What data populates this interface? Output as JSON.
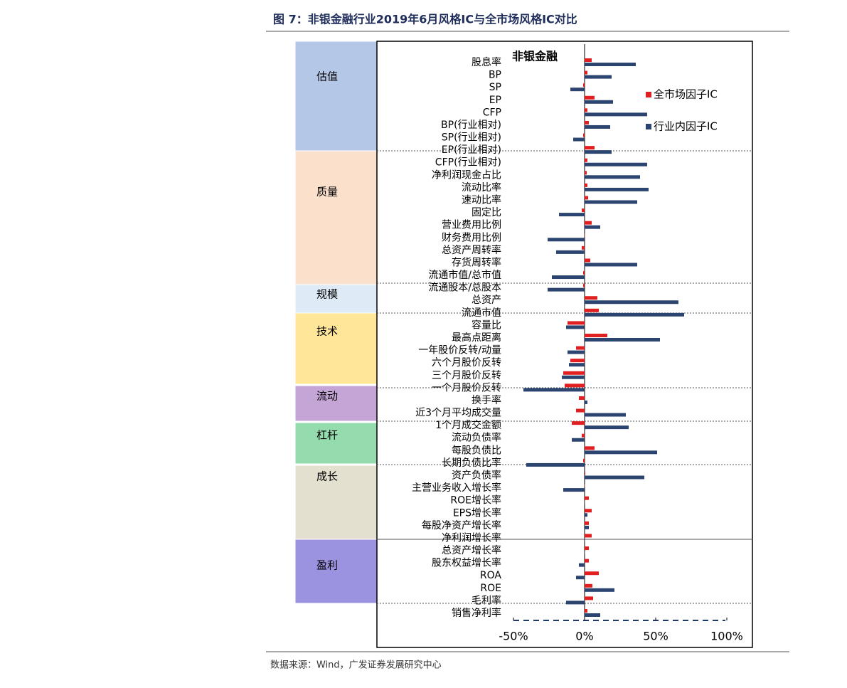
{
  "title": "图 7：非银金融行业2019年6月风格IC与全市场风格IC对比",
  "source": "数据来源：Wind，广发证券发展研究中心",
  "chart_data": {
    "type": "hbar",
    "title": "非银金融",
    "group_labels": [
      "估值",
      "质量",
      "规模",
      "技术",
      "流动",
      "杠杆",
      "成长",
      "盈利"
    ],
    "categories": [
      "股息率",
      "BP",
      "SP",
      "EP",
      "CFP",
      "BP(行业相对)",
      "SP(行业相对)",
      "EP(行业相对)",
      "CFP(行业相对)",
      "净利润现金占比",
      "流动比率",
      "速动比率",
      "固定比",
      "营业费用比例",
      "财务费用比例",
      "总资产周转率",
      "存货周转率",
      "流通市值/总市值",
      "流通股本/总股本",
      "总资产",
      "流通市值",
      "容量比",
      "最高点距离",
      "一年股价反转/动量",
      "六个月股价反转",
      "三个月股价反转",
      "一个月股价反转",
      "换手率",
      "近3个月平均成交量",
      "1个月成交金额",
      "流动负债率",
      "每股负债比",
      "长期负债比率",
      "资产负债率",
      "主营业务收入增长率",
      "ROE增长率",
      "EPS增长率",
      "每股净资产增长率",
      "净利润增长率",
      "总资产增长率",
      "股东权益增长率",
      "ROA",
      "ROE",
      "毛利率",
      "销售净利率"
    ],
    "series": [
      {
        "name": "全市场因子IC",
        "color": "#e02020",
        "values": [
          5,
          2,
          -1,
          7,
          2,
          3,
          -1,
          7,
          2,
          1.5,
          2,
          2.5,
          -2,
          5,
          0,
          -2,
          4,
          -1,
          -1,
          9,
          10,
          -12,
          16,
          -6,
          -10,
          -15,
          -14,
          -4,
          -6,
          -9,
          -2,
          7,
          -1,
          0.5,
          0,
          3,
          5,
          3,
          5,
          3,
          3,
          10,
          5.5,
          6,
          2
        ]
      },
      {
        "name": "行业内因子IC",
        "color": "#2b4470",
        "values": [
          36,
          19,
          -10,
          20,
          44,
          18,
          -8,
          19,
          44,
          39,
          45,
          37,
          -18,
          11,
          -26,
          -20,
          37,
          -23,
          -26,
          66,
          70,
          -13,
          53,
          -12,
          -11,
          -16,
          -43,
          2,
          29,
          31,
          -9,
          51,
          -41,
          42,
          -15,
          0,
          2,
          3,
          0,
          0,
          -4,
          -6,
          21,
          -13,
          11
        ]
      }
    ],
    "xlim": [
      -146,
      118
    ],
    "xticks": [
      {
        "value": -50,
        "label": "-50%"
      },
      {
        "value": 0,
        "label": "0%"
      },
      {
        "value": 50,
        "label": "50%"
      },
      {
        "value": 100,
        "label": "100%"
      }
    ],
    "legend": "upper right"
  }
}
